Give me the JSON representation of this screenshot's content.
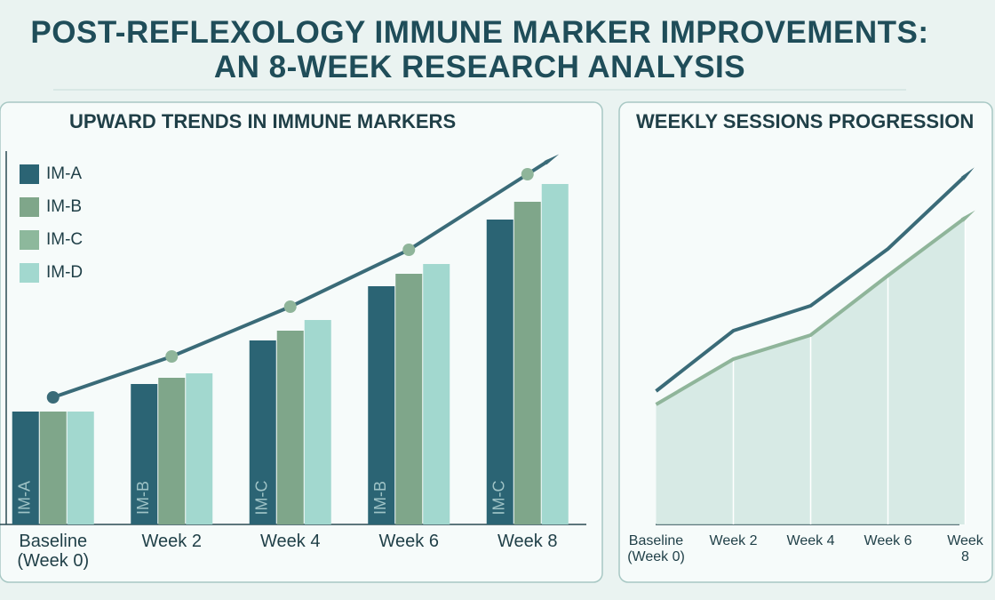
{
  "title": "POST-REFLEXOLOGY IMMUNE MARKER IMPROVEMENTS:\nAN 8-WEEK RESEARCH ANALYSIS",
  "chart_data": [
    {
      "type": "bar",
      "title": "UPWARD TRENDS IN IMMUNE MARKERS",
      "categories": [
        "Baseline\n(Week 0)",
        "Week 2",
        "Week 4",
        "Week 6",
        "Week 8"
      ],
      "series": [
        {
          "name": "IM-A",
          "color": "#2b6474",
          "values": [
            127,
            158,
            207,
            268,
            343
          ]
        },
        {
          "name": "IM-B",
          "color": "#7fa68a",
          "values": [
            127,
            165,
            218,
            282,
            363
          ]
        },
        {
          "name": "IM-C",
          "color": "#8db89c",
          "values": [
            null,
            null,
            null,
            null,
            null
          ]
        },
        {
          "name": "IM-D",
          "color": "#a2d8cf",
          "values": [
            127,
            170,
            230,
            293,
            383
          ]
        }
      ],
      "bar_labels": [
        "IM-A",
        "IM-B",
        "IM-C",
        "IM-B",
        "IM-C"
      ],
      "trend": {
        "color": "#3a6b78",
        "marker_color": "#8fb59a",
        "values": [
          143,
          189,
          245,
          309,
          394
        ]
      },
      "ylim": [
        0,
        400
      ],
      "legend": "upper left"
    },
    {
      "type": "line",
      "title": "WEEKLY SESSIONS PROGRESSION",
      "categories": [
        "Baseline\n(Week 0)",
        "Week 2",
        "Week 4",
        "Week 6",
        "Week 8"
      ],
      "series": [
        {
          "color": "#3a6b78",
          "values": [
            150,
            218,
            246,
            310,
            392
          ]
        },
        {
          "color": "#8fb59a",
          "values": [
            135,
            186,
            213,
            280,
            345
          ]
        }
      ],
      "area": true,
      "area_color": "#cfe6e0",
      "ylim": [
        0,
        400
      ]
    }
  ]
}
